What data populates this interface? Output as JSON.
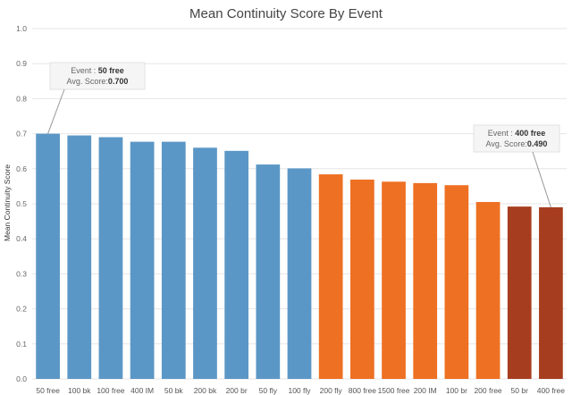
{
  "chart_data": {
    "type": "bar",
    "title": "Mean Continuity Score By Event",
    "xlabel": "",
    "ylabel": "Mean Continuity Score",
    "ylim": [
      0,
      1.0
    ],
    "yticks": [
      "0.0",
      "0.1",
      "0.2",
      "0.3",
      "0.4",
      "0.5",
      "0.6",
      "0.7",
      "0.8",
      "0.9",
      "1.0"
    ],
    "grid": true,
    "categories": [
      "50 free",
      "100 bk",
      "100 free",
      "400 IM",
      "50 bk",
      "200 bk",
      "200 br",
      "50 fly",
      "100 fly",
      "200 fly",
      "800 free",
      "1500 free",
      "200 IM",
      "100 br",
      "200 free",
      "50 br",
      "400 free"
    ],
    "values": [
      0.7,
      0.695,
      0.69,
      0.677,
      0.677,
      0.66,
      0.651,
      0.612,
      0.601,
      0.584,
      0.569,
      0.563,
      0.559,
      0.553,
      0.505,
      0.492,
      0.49
    ],
    "colors": [
      "#5b97c6",
      "#5b97c6",
      "#5b97c6",
      "#5b97c6",
      "#5b97c6",
      "#5b97c6",
      "#5b97c6",
      "#5b97c6",
      "#5b97c6",
      "#ee7023",
      "#ee7023",
      "#ee7023",
      "#ee7023",
      "#ee7023",
      "#ee7023",
      "#a63d1f",
      "#a63d1f"
    ],
    "annotations": [
      {
        "category_index": 0,
        "event_label": "Event : ",
        "event_value": "50 free",
        "score_label": "Avg. Score:",
        "score_value": "0.700"
      },
      {
        "category_index": 16,
        "event_label": "Event : ",
        "event_value": "400 free",
        "score_label": "Avg. Score:",
        "score_value": "0.490"
      }
    ]
  }
}
